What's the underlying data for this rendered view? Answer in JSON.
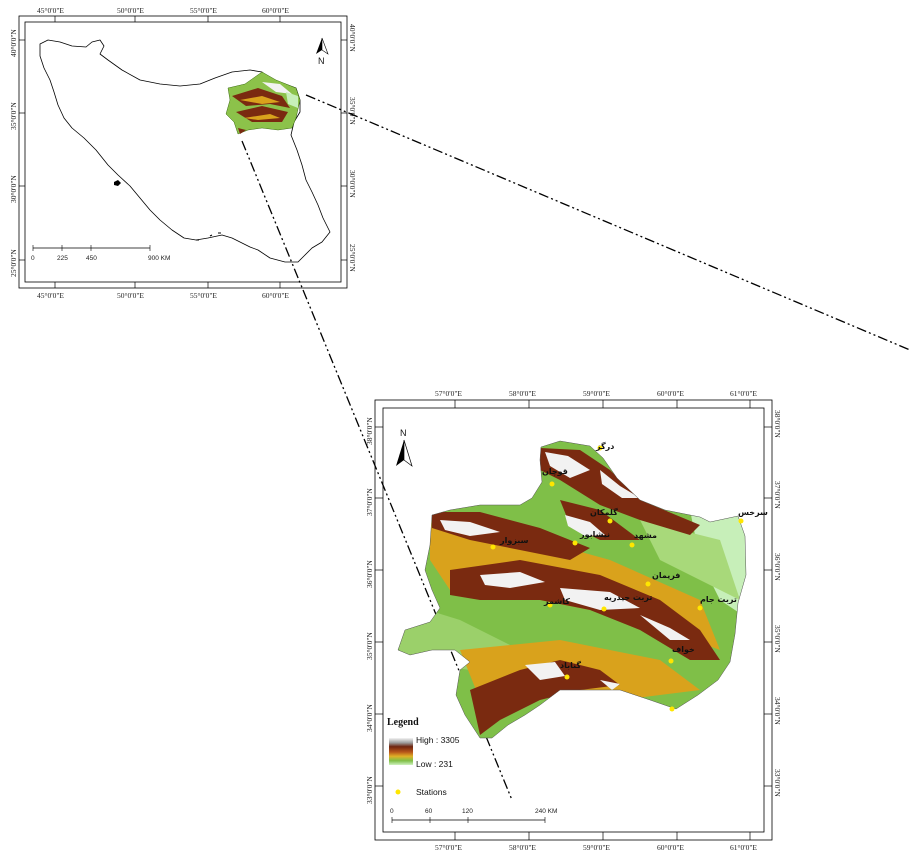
{
  "overview_map": {
    "top_lon_labels": [
      "45°0'0\"E",
      "50°0'0\"E",
      "55°0'0\"E",
      "60°0'0\"E"
    ],
    "bottom_lon_labels": [
      "45°0'0\"E",
      "50°0'0\"E",
      "55°0'0\"E",
      "60°0'0\"E"
    ],
    "left_lat_labels": [
      "40°0'0\"N",
      "35°0'0\"N",
      "30°0'0\"N",
      "25°0'0\"N"
    ],
    "right_lat_labels": [
      "40°0'0\"N",
      "35°0'0\"N",
      "30°0'0\"N",
      "25°0'0\"N"
    ],
    "north_label": "N",
    "scale_labels": [
      "0",
      "225",
      "450",
      "900 KM"
    ]
  },
  "detail_map": {
    "top_lon_labels": [
      "57°0'0\"E",
      "58°0'0\"E",
      "59°0'0\"E",
      "60°0'0\"E",
      "61°0'0\"E"
    ],
    "bottom_lon_labels": [
      "57°0'0\"E",
      "58°0'0\"E",
      "59°0'0\"E",
      "60°0'0\"E",
      "61°0'0\"E"
    ],
    "left_lat_labels": [
      "38°0'0\"N",
      "37°0'0\"N",
      "36°0'0\"N",
      "35°0'0\"N",
      "34°0'0\"N",
      "33°0'0\"N"
    ],
    "right_lat_labels": [
      "38°0'0\"N",
      "37°0'0\"N",
      "36°0'0\"N",
      "35°0'0\"N",
      "34°0'0\"N",
      "33°0'0\"N"
    ],
    "north_label": "N",
    "stations": [
      "درگز",
      "قوچان",
      "گلمکان",
      "سرخس",
      "سبزوار",
      "نیشابور",
      "مشهد",
      "فریمان",
      "تربت حیدریه",
      "کاشمر",
      "تربت جام",
      "خواف",
      "گناباد"
    ],
    "legend": {
      "title": "Legend",
      "high": "High : 3305",
      "low": "Low : 231",
      "stations": "Stations"
    },
    "scale_labels": [
      "0",
      "60",
      "120",
      "240 KM"
    ]
  },
  "colors": {
    "high": "#f2f2f2",
    "upper": "#7a2a10",
    "mid": "#d9a21c",
    "lower": "#8cc24a",
    "low": "#c7efb9",
    "station": "#ffe600"
  }
}
